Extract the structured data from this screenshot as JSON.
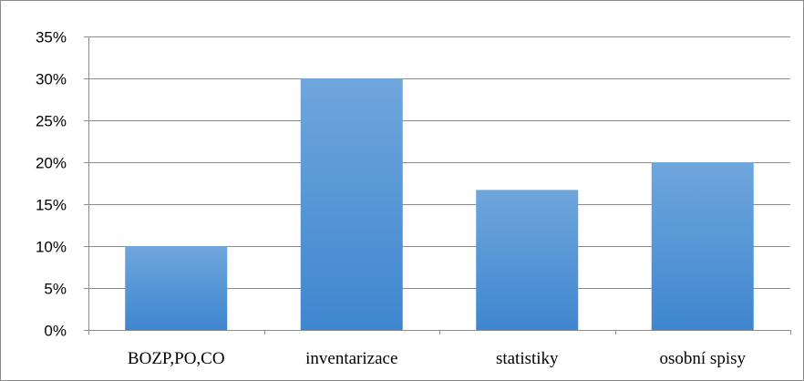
{
  "chart_data": {
    "type": "bar",
    "categories": [
      "BOZP,PO,CO",
      "inventarizace",
      "statistiky",
      "osobní spisy"
    ],
    "values": [
      10,
      30,
      16.7,
      20
    ],
    "value_unit": "%",
    "title": "",
    "xlabel": "",
    "ylabel": "",
    "ylim": [
      0,
      35
    ],
    "y_ticks": [
      "0%",
      "5%",
      "10%",
      "15%",
      "20%",
      "25%",
      "30%",
      "35%"
    ],
    "y_tick_values": [
      0,
      5,
      10,
      15,
      20,
      25,
      30,
      35
    ],
    "grid": true,
    "legend": "none",
    "bar_color_top": "#6fa6dc",
    "bar_color_bottom": "#3f86cf"
  }
}
